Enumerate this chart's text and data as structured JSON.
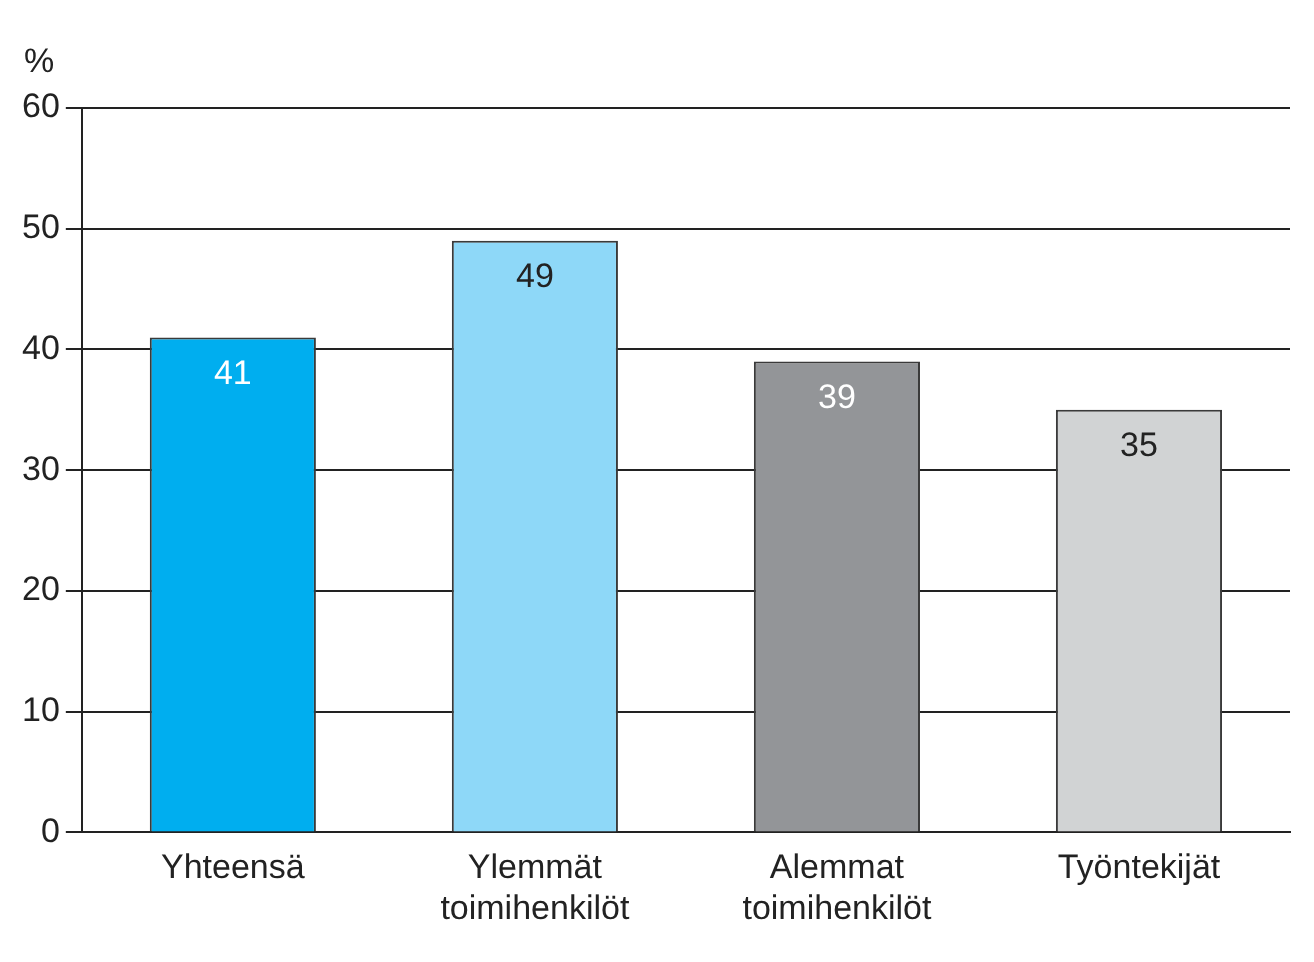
{
  "chart_data": {
    "type": "bar",
    "ylabel": "%",
    "categories": [
      "Yhteensä",
      "Ylemmät toimihenkilöt",
      "Alemmat toimihenkilöt",
      "Työntekijät"
    ],
    "values": [
      41,
      49,
      39,
      35
    ],
    "colors": [
      "#00aeef",
      "#8ed8f8",
      "#939598",
      "#d1d3d4"
    ],
    "ylim": [
      0,
      60
    ],
    "yticks": [
      0,
      10,
      20,
      30,
      40,
      50,
      60
    ],
    "grid": "y",
    "data_labels": true,
    "legend": false
  }
}
